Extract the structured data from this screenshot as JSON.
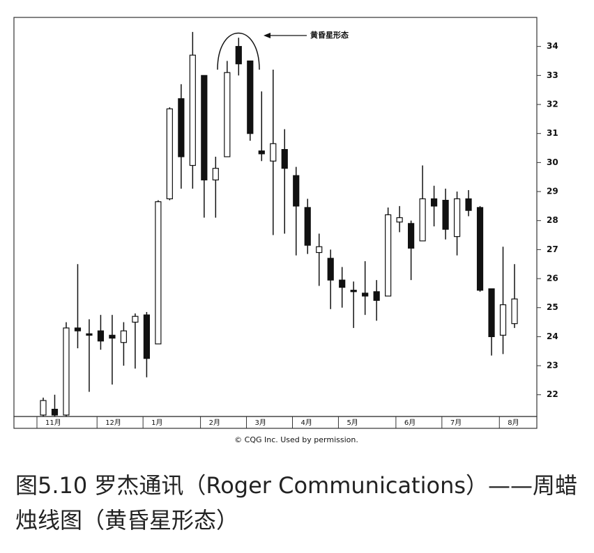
{
  "chart_data": {
    "type": "candlestick",
    "annotation": "黄昏星形态",
    "source": "© CQG Inc. Used by permission.",
    "caption": "图5.10 罗杰通讯（Roger Communications）——周蜡烛线图（黄昏星形态）",
    "months": [
      "11月",
      "12月",
      "1月",
      "2月",
      "3月",
      "4月",
      "5月",
      "6月",
      "7月",
      "8月"
    ],
    "up_color": "#ffffff",
    "down_color": "#111111",
    "ylim": [
      21.25,
      35
    ],
    "yticks": [
      22,
      23,
      24,
      25,
      26,
      27,
      28,
      29,
      30,
      31,
      32,
      33,
      34
    ],
    "series": [
      {
        "open": [
          21.3,
          21.5,
          21.3,
          24.3,
          24.1,
          24.2,
          24.05,
          23.8,
          24.5,
          24.75,
          23.75,
          28.75,
          32.2,
          29.9,
          33.0,
          29.4,
          30.2,
          34.0,
          33.5,
          30.4,
          30.05,
          30.45,
          29.55,
          28.45,
          26.9,
          26.7,
          25.95,
          25.6,
          25.5,
          25.55,
          25.4,
          27.95,
          27.9,
          27.3,
          28.75,
          28.7,
          27.45,
          28.75,
          28.45,
          25.65,
          24.05,
          24.45
        ],
        "high": [
          21.9,
          22.0,
          24.5,
          26.5,
          24.6,
          24.75,
          24.75,
          24.5,
          24.8,
          24.85,
          28.7,
          31.9,
          32.7,
          34.5,
          33.0,
          30.2,
          33.5,
          34.3,
          33.5,
          32.45,
          33.2,
          31.15,
          29.85,
          28.75,
          27.55,
          27.0,
          26.4,
          25.9,
          26.6,
          25.95,
          28.45,
          28.5,
          28.0,
          29.9,
          29.2,
          29.1,
          29.0,
          29.05,
          28.5,
          25.65,
          27.1,
          26.5
        ],
        "low": [
          21.25,
          21.25,
          21.25,
          23.6,
          22.1,
          23.55,
          22.35,
          23.0,
          22.9,
          22.6,
          23.75,
          28.7,
          29.1,
          29.1,
          28.1,
          28.1,
          30.2,
          33.0,
          30.75,
          30.05,
          27.5,
          27.55,
          26.8,
          26.85,
          25.75,
          24.95,
          25.0,
          24.3,
          24.75,
          24.55,
          25.4,
          27.6,
          25.95,
          27.3,
          27.8,
          27.35,
          26.8,
          28.15,
          25.55,
          23.35,
          23.4,
          24.3
        ],
        "close": [
          21.8,
          21.3,
          24.3,
          24.2,
          24.05,
          23.85,
          23.95,
          24.2,
          24.7,
          23.25,
          28.65,
          31.85,
          30.2,
          33.7,
          29.4,
          29.8,
          33.1,
          33.4,
          31.0,
          30.3,
          30.65,
          29.8,
          28.5,
          27.15,
          27.1,
          25.95,
          25.7,
          25.55,
          25.4,
          25.25,
          28.2,
          28.1,
          27.05,
          28.75,
          28.5,
          27.7,
          28.75,
          28.35,
          25.6,
          24.0,
          25.1,
          25.3
        ]
      }
    ]
  }
}
